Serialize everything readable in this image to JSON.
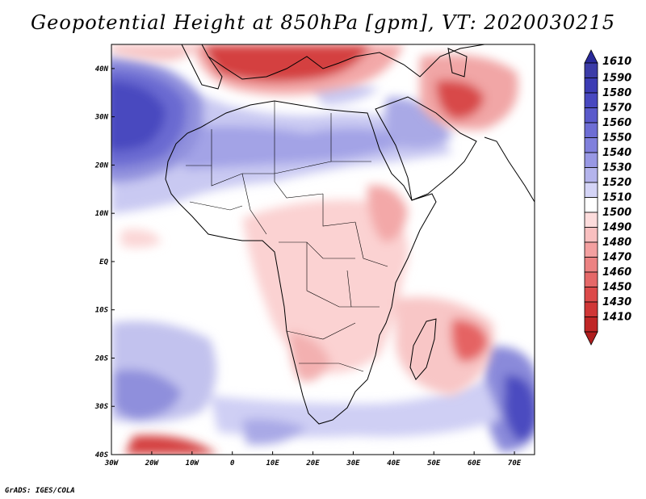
{
  "title": "Geopotential Height at 850hPa [gpm], VT: 2020030215",
  "credit": "GrADS: IGES/COLA",
  "map": {
    "lon_range": [
      -30,
      75
    ],
    "lat_range": [
      -40,
      45
    ],
    "lon_ticks": [
      {
        "value": -30,
        "label": "30W"
      },
      {
        "value": -20,
        "label": "20W"
      },
      {
        "value": -10,
        "label": "10W"
      },
      {
        "value": 0,
        "label": "0"
      },
      {
        "value": 10,
        "label": "10E"
      },
      {
        "value": 20,
        "label": "20E"
      },
      {
        "value": 30,
        "label": "30E"
      },
      {
        "value": 40,
        "label": "40E"
      },
      {
        "value": 50,
        "label": "50E"
      },
      {
        "value": 60,
        "label": "60E"
      },
      {
        "value": 70,
        "label": "70E"
      }
    ],
    "lat_ticks": [
      {
        "value": 40,
        "label": "40N"
      },
      {
        "value": 30,
        "label": "30N"
      },
      {
        "value": 20,
        "label": "20N"
      },
      {
        "value": 10,
        "label": "10N"
      },
      {
        "value": 0,
        "label": "EQ"
      },
      {
        "value": -10,
        "label": "10S"
      },
      {
        "value": -20,
        "label": "20S"
      },
      {
        "value": -30,
        "label": "30S"
      },
      {
        "value": -40,
        "label": "40S"
      }
    ]
  },
  "colorbar": {
    "levels": [
      {
        "label": "1610",
        "color": "#3c3ca8"
      },
      {
        "label": "1590",
        "color": "#3c3cb4"
      },
      {
        "label": "1580",
        "color": "#4848c0"
      },
      {
        "label": "1570",
        "color": "#5a5acb"
      },
      {
        "label": "1560",
        "color": "#6d6dd4"
      },
      {
        "label": "1550",
        "color": "#8080dc"
      },
      {
        "label": "1540",
        "color": "#9898e4"
      },
      {
        "label": "1530",
        "color": "#b4b4ec"
      },
      {
        "label": "1520",
        "color": "#d4d4f6"
      },
      {
        "label": "1510",
        "color": "#ffffff"
      },
      {
        "label": "1500",
        "color": "#fddcdc"
      },
      {
        "label": "1490",
        "color": "#f9c0c0"
      },
      {
        "label": "1480",
        "color": "#f3a0a0"
      },
      {
        "label": "1470",
        "color": "#ec8282"
      },
      {
        "label": "1460",
        "color": "#e56868"
      },
      {
        "label": "1450",
        "color": "#dc4a4a"
      },
      {
        "label": "1430",
        "color": "#d03636"
      },
      {
        "label": "1410",
        "color": "#c02626"
      }
    ],
    "top_arrow_color": "#2a2a9a",
    "bottom_arrow_color": "#b01e1e"
  }
}
